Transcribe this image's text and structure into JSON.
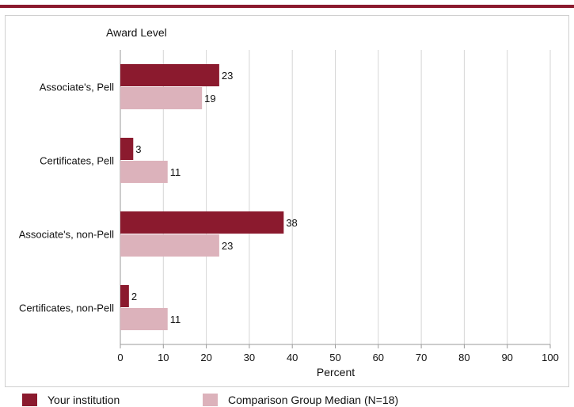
{
  "chart_data": {
    "type": "bar",
    "orientation": "horizontal",
    "y_axis_title": "Award Level",
    "xlabel": "Percent",
    "xlim": [
      0,
      100
    ],
    "xticks": [
      0,
      10,
      20,
      30,
      40,
      50,
      60,
      70,
      80,
      90,
      100
    ],
    "grid": true,
    "categories": [
      "Associate's, Pell",
      "Certificates, Pell",
      "Associate's, non-Pell",
      "Certificates, non-Pell"
    ],
    "series": [
      {
        "name": "Your institution",
        "color": "#8b1a2e",
        "values": [
          23,
          3,
          38,
          2
        ]
      },
      {
        "name": "Comparison Group Median (N=18)",
        "color": "#dcb2bb",
        "values": [
          19,
          11,
          23,
          11
        ]
      }
    ],
    "legend_position": "bottom"
  }
}
